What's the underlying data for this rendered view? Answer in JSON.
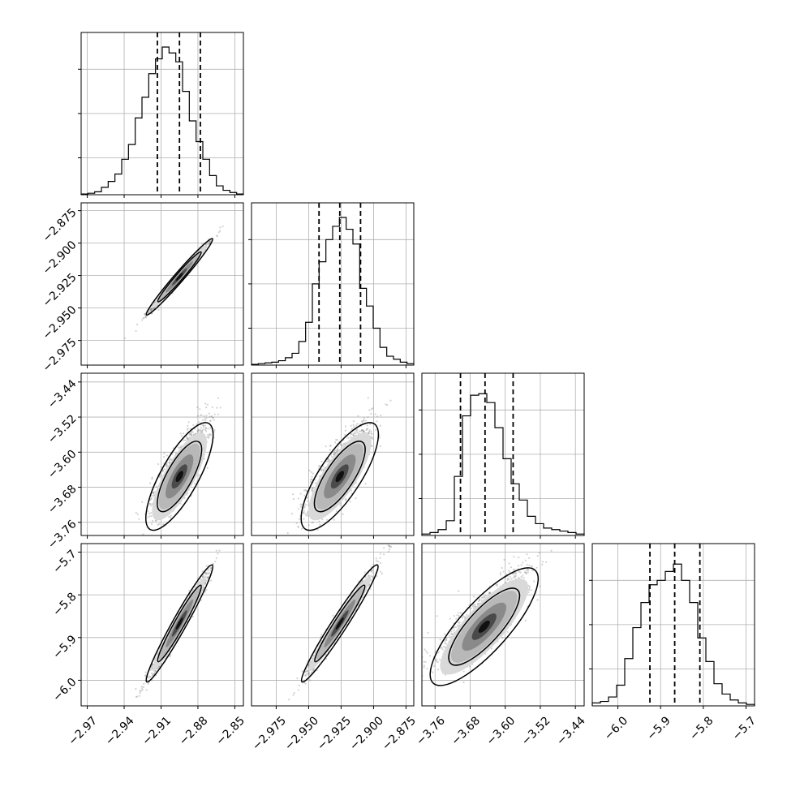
{
  "chart_data": {
    "type": "corner",
    "title": "",
    "parameters": [
      {
        "range": [
          -2.975,
          -2.843
        ],
        "ticks": [
          -2.97,
          -2.94,
          -2.91,
          -2.88,
          -2.85
        ],
        "tick_labels": [
          "−2.97",
          "−2.94",
          "−2.91",
          "−2.88",
          "−2.85"
        ],
        "quantiles": [
          -2.913,
          -2.895,
          -2.878
        ],
        "histogram": [
          0.005,
          0.01,
          0.02,
          0.05,
          0.09,
          0.14,
          0.24,
          0.34,
          0.52,
          0.66,
          0.82,
          0.92,
          1.0,
          0.96,
          0.9,
          0.7,
          0.5,
          0.36,
          0.24,
          0.13,
          0.06,
          0.03,
          0.015,
          0.005
        ],
        "mean": -2.895,
        "sd": 0.011
      },
      {
        "range": [
          -2.994,
          -2.869
        ],
        "ticks": [
          -2.975,
          -2.95,
          -2.925,
          -2.9,
          -2.875
        ],
        "tick_labels": [
          "−2.975",
          "−2.950",
          "−2.925",
          "−2.900",
          "−2.875"
        ],
        "quantiles": [
          -2.942,
          -2.926,
          -2.91
        ],
        "histogram": [
          0.005,
          0.01,
          0.015,
          0.02,
          0.03,
          0.05,
          0.08,
          0.16,
          0.29,
          0.55,
          0.7,
          0.85,
          0.94,
          1.0,
          0.92,
          0.82,
          0.52,
          0.4,
          0.25,
          0.12,
          0.06,
          0.04,
          0.02,
          0.01
        ],
        "mean": -2.926,
        "sd": 0.012
      },
      {
        "range": [
          -3.79,
          -3.42
        ],
        "ticks": [
          -3.76,
          -3.68,
          -3.6,
          -3.52,
          -3.44
        ],
        "tick_labels": [
          "−3.76",
          "−3.68",
          "−3.60",
          "−3.52",
          "−3.44"
        ],
        "quantiles": [
          -3.702,
          -3.646,
          -3.582
        ],
        "histogram": [
          0.01,
          0.02,
          0.04,
          0.1,
          0.4,
          0.81,
          0.95,
          0.96,
          0.9,
          0.73,
          0.52,
          0.35,
          0.24,
          0.13,
          0.08,
          0.05,
          0.04,
          0.03,
          0.02,
          0.01
        ],
        "mean": -3.648,
        "sd": 0.05
      },
      {
        "range": [
          -6.06,
          -5.68
        ],
        "ticks": [
          -6.0,
          -5.9,
          -5.8,
          -5.7
        ],
        "tick_labels": [
          "−6.0",
          "−5.9",
          "−5.8",
          "−5.7"
        ],
        "quantiles": [
          -5.925,
          -5.867,
          -5.808
        ],
        "histogram": [
          0.02,
          0.03,
          0.06,
          0.14,
          0.32,
          0.53,
          0.7,
          0.82,
          0.85,
          0.91,
          0.96,
          0.85,
          0.7,
          0.46,
          0.3,
          0.15,
          0.08,
          0.04,
          0.02,
          0.01
        ],
        "mean": -5.867,
        "sd": 0.056
      }
    ],
    "correlations": [
      [
        1,
        0.99,
        0.8,
        0.98
      ],
      [
        0.99,
        1,
        0.8,
        0.98
      ],
      [
        0.8,
        0.8,
        1,
        0.83
      ],
      [
        0.98,
        0.98,
        0.83,
        1
      ]
    ],
    "grid": true,
    "colors": {
      "line": "#000000",
      "grid": "#b0b0b0",
      "points": "#808080"
    }
  }
}
